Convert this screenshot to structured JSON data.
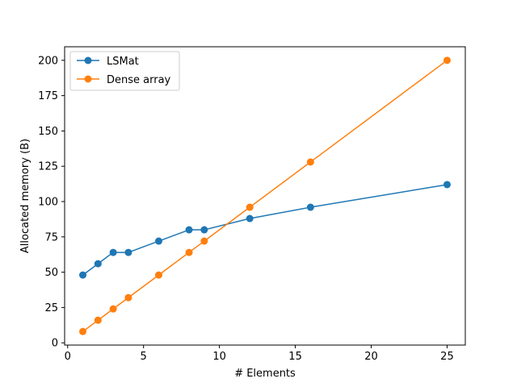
{
  "chart_data": {
    "type": "line",
    "title": "",
    "xlabel": "# Elements",
    "ylabel": "Allocated memory (B)",
    "xlim": [
      -0.2,
      26.2
    ],
    "ylim": [
      -1.6,
      209.6
    ],
    "xticks": [
      0,
      5,
      10,
      15,
      20,
      25
    ],
    "yticks": [
      0,
      25,
      50,
      75,
      100,
      125,
      150,
      175,
      200
    ],
    "grid": false,
    "legend_position": "upper left",
    "series": [
      {
        "name": "LSMat",
        "color": "#1f77b4",
        "marker": "circle",
        "x": [
          1,
          2,
          3,
          4,
          6,
          8,
          9,
          12,
          16,
          25
        ],
        "y": [
          48,
          56,
          64,
          64,
          72,
          80,
          80,
          88,
          96,
          112
        ]
      },
      {
        "name": "Dense array",
        "color": "#ff7f0e",
        "marker": "circle",
        "x": [
          1,
          2,
          3,
          4,
          6,
          8,
          9,
          12,
          16,
          25
        ],
        "y": [
          8,
          16,
          24,
          32,
          48,
          64,
          72,
          96,
          128,
          200
        ]
      }
    ]
  }
}
